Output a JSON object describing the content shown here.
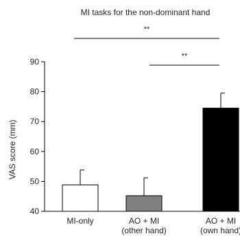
{
  "chart_data": {
    "type": "bar",
    "title": "MI tasks for the non-dominant hand",
    "xlabel": "",
    "ylabel": "VAS score (mm)",
    "ylim": [
      40,
      90
    ],
    "yticks": [
      40,
      50,
      60,
      70,
      80,
      90
    ],
    "categories": [
      [
        "MI-only"
      ],
      [
        "AO + MI",
        "(other hand)"
      ],
      [
        "AO + MI",
        "(own hand)"
      ]
    ],
    "values": [
      48.8,
      45.2,
      74.5
    ],
    "errors": [
      5.0,
      6.0,
      5.0
    ],
    "colors": [
      "#ffffff",
      "#808080",
      "#000000"
    ],
    "bar_edge_color": "#000000",
    "grid": false,
    "significance": [
      {
        "from": 0,
        "to": 2,
        "label": "**"
      },
      {
        "from": 1,
        "to": 2,
        "label": "**"
      }
    ]
  }
}
